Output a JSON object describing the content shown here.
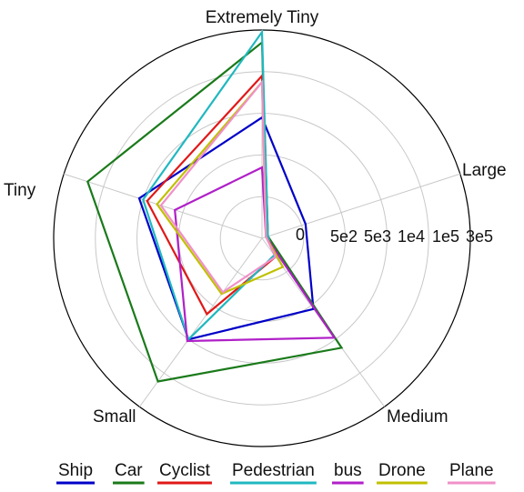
{
  "chart_data": {
    "type": "radar",
    "axes": [
      "Extremely Tiny",
      "Large",
      "Medium",
      "Small",
      "Tiny"
    ],
    "rings": [
      "0",
      "5e2",
      "5e3",
      "1e4",
      "1e5",
      "3e5"
    ],
    "series": [
      {
        "name": "Ship",
        "color": "#0000c8",
        "values": [
          2.9,
          1.1,
          2.1,
          3.0,
          3.1
        ]
      },
      {
        "name": "Car",
        "color": "#1a7a1a",
        "values": [
          4.7,
          0.15,
          3.25,
          4.25,
          4.4
        ]
      },
      {
        "name": "Cyclist",
        "color": "#e01818",
        "values": [
          3.9,
          0.15,
          0.55,
          2.25,
          2.9
        ]
      },
      {
        "name": "Pedestrian",
        "color": "#20b8c0",
        "values": [
          4.95,
          0.15,
          0.5,
          3.0,
          3.0
        ]
      },
      {
        "name": "bus",
        "color": "#b020c8",
        "values": [
          1.7,
          0.1,
          2.95,
          3.05,
          2.2
        ]
      },
      {
        "name": "Drone",
        "color": "#c0c000",
        "values": [
          3.75,
          0.1,
          0.85,
          1.65,
          2.65
        ]
      },
      {
        "name": "Plane",
        "color": "#f090c8",
        "values": [
          3.75,
          0.1,
          0.55,
          1.6,
          2.55
        ]
      }
    ],
    "rmax": 5,
    "grid": true,
    "legend_position": "bottom"
  }
}
